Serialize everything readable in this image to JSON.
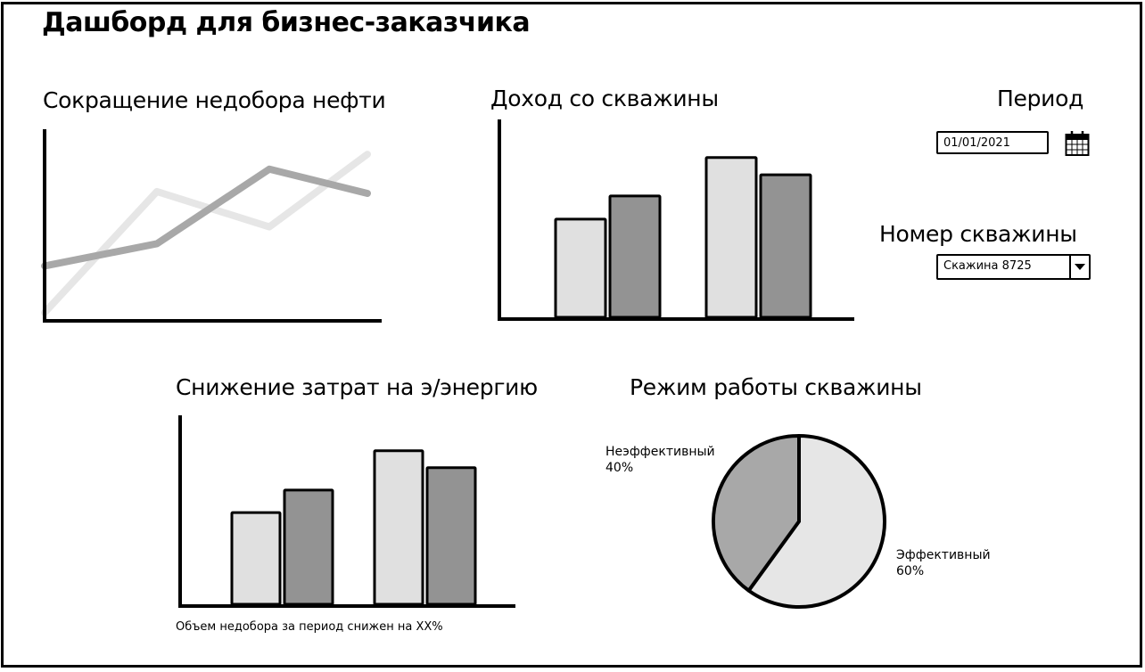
{
  "page": {
    "title": "Дашборд для бизнес-заказчика"
  },
  "filters": {
    "period_label": "Период",
    "period_value": "01/01/2021",
    "well_label": "Номер скважины",
    "well_value": "Скажина 8725"
  },
  "icons": {
    "calendar": "calendar-icon",
    "dropdown": "chevron-down-icon"
  },
  "colors": {
    "series_light": "#e4e4e4",
    "series_dark": "#9a9a9a"
  },
  "chart_data": [
    {
      "id": "oil",
      "type": "line",
      "title": "Сокращение недобора нефти",
      "x": [
        1,
        2,
        3,
        4
      ],
      "series": [
        {
          "color": "#a8a8a8",
          "values": [
            28,
            40,
            80,
            67
          ]
        },
        {
          "color": "#e6e6e6",
          "values": [
            3,
            68,
            49,
            88
          ]
        }
      ],
      "ylim": [
        0,
        100
      ],
      "grid": false
    },
    {
      "id": "income",
      "type": "bar",
      "title": "Доход со скважины",
      "categories": [
        "1",
        "2"
      ],
      "series": [
        {
          "color": "#e0e0e0",
          "values": [
            51,
            83
          ]
        },
        {
          "color": "#939393",
          "values": [
            63,
            74
          ]
        }
      ],
      "ylim": [
        0,
        100
      ],
      "grid": false
    },
    {
      "id": "energy",
      "type": "bar",
      "title": "Снижение затрат на э/энергию",
      "categories": [
        "1",
        "2"
      ],
      "series": [
        {
          "color": "#e0e0e0",
          "values": [
            49,
            82
          ]
        },
        {
          "color": "#939393",
          "values": [
            61,
            73
          ]
        }
      ],
      "ylim": [
        0,
        100
      ],
      "grid": false,
      "note": "Объем недобора за период снижен на XX%"
    },
    {
      "id": "mode",
      "type": "pie",
      "title": "Режим работы скважины",
      "slices": [
        {
          "label": "Эффективный",
          "value": 60,
          "value_text": "60%",
          "color": "#e6e6e6"
        },
        {
          "label": "Неэффективный",
          "value": 40,
          "value_text": "40%",
          "color": "#a8a8a8"
        }
      ]
    }
  ]
}
